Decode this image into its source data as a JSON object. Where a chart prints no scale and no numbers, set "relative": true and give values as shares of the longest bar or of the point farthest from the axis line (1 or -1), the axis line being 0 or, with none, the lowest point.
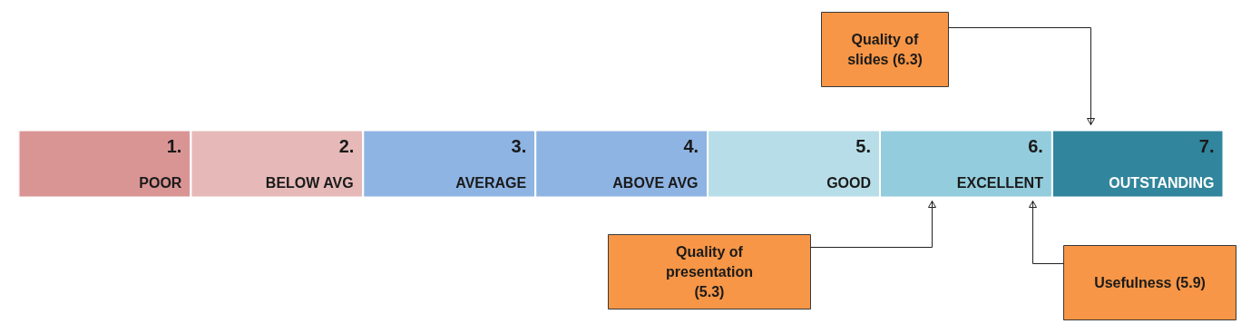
{
  "chart_data": {
    "type": "bar",
    "orientation": "horizontal",
    "stacked": true,
    "relative": true,
    "tick_labels": false,
    "categories": [
      null
    ],
    "series": [
      {
        "name": "POOR",
        "color": "#d99594",
        "values": [
          0.143
        ]
      },
      {
        "name": "BELOW AVG",
        "color": "#e6b9b8",
        "values": [
          0.143
        ]
      },
      {
        "name": "AVERAGE",
        "color": "#8eb4e3",
        "values": [
          0.143
        ]
      },
      {
        "name": "ABOVE AVG",
        "color": "#8eb4e3",
        "values": [
          0.143
        ]
      },
      {
        "name": "GOOD",
        "color": "#b7dee8",
        "values": [
          0.143
        ]
      },
      {
        "name": "EXCELLENT",
        "color": "#93cddd",
        "values": [
          0.143
        ]
      },
      {
        "name": "OUTSTANDING",
        "color": "#31859c",
        "values": [
          0.142
        ]
      }
    ],
    "annotations": [
      "1.",
      "2.",
      "3.",
      "4.",
      "5.",
      "6.",
      "7.",
      "Quality of slides (6.3)",
      "Quality of presentation (5.3)",
      "Usefulness (5.9)"
    ]
  }
}
